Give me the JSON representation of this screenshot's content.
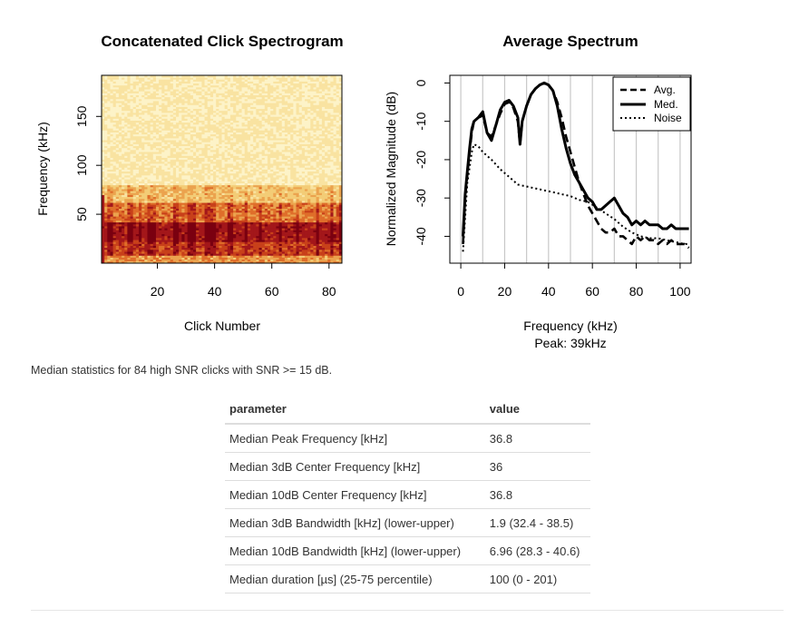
{
  "summary": "Median statistics for 84 high SNR clicks with SNR >= 15 dB.",
  "colors": {
    "heat": [
      "#7a0010",
      "#a3171a",
      "#c8401a",
      "#df6e2a",
      "#eba34e",
      "#f3cc76",
      "#f9e3a1",
      "#fdf3c8"
    ],
    "line": "#000000",
    "grid": "#c8c8c8"
  },
  "chart_data": [
    {
      "type": "heatmap",
      "title": "Concatenated Click Spectrogram",
      "xlabel": "Click Number",
      "ylabel": "Frequency (kHz)",
      "x_ticks": [
        20,
        40,
        60,
        80
      ],
      "y_ticks": [
        50,
        100,
        150
      ],
      "xlim": [
        0.5,
        84.5
      ],
      "ylim": [
        0,
        192
      ],
      "n_clicks": 84,
      "freq_bins": 96,
      "description_of_values": "normalized magnitude per click and frequency; strongest energy 10-60 kHz"
    },
    {
      "type": "line",
      "title": "Average Spectrum",
      "xlabel": "Frequency (kHz)",
      "subtitle": "Peak: 39kHz",
      "ylabel": "Normalized Magnitude (dB)",
      "x_ticks": [
        0,
        20,
        40,
        60,
        80,
        100
      ],
      "y_ticks": [
        0,
        -10,
        -20,
        -30,
        -40
      ],
      "xlim": [
        -5,
        105
      ],
      "ylim": [
        -47,
        2
      ],
      "vertical_grid": [
        0,
        10,
        20,
        30,
        40,
        50,
        60,
        70,
        80,
        90,
        100
      ],
      "legend": [
        "Avg.",
        "Med.",
        "Noise"
      ],
      "legend_position": "top-right",
      "series": [
        {
          "name": "Avg.",
          "style": "dashed",
          "x": [
            1,
            2,
            3,
            4,
            5,
            6,
            8,
            10,
            12,
            14,
            16,
            18,
            20,
            22,
            24,
            26,
            27,
            28,
            30,
            32,
            34,
            36,
            38,
            40,
            42,
            44,
            46,
            48,
            50,
            52,
            54,
            56,
            58,
            60,
            62,
            64,
            66,
            68,
            70,
            72,
            74,
            76,
            78,
            80,
            82,
            84,
            86,
            88,
            90,
            92,
            94,
            96,
            98,
            100,
            102,
            104
          ],
          "y": [
            -42,
            -30,
            -24,
            -18,
            -13,
            -10,
            -9,
            -8.5,
            -13,
            -14,
            -11,
            -8,
            -5.5,
            -5,
            -6.5,
            -10,
            -16,
            -10,
            -6,
            -3,
            -1.5,
            -0.5,
            0,
            -0.5,
            -2,
            -5,
            -9,
            -14,
            -18,
            -22,
            -26,
            -29,
            -32,
            -34,
            -36,
            -38,
            -39,
            -39,
            -38,
            -40,
            -40,
            -41,
            -42,
            -40,
            -41,
            -40,
            -41,
            -41,
            -42,
            -41,
            -42,
            -41,
            -42,
            -42,
            -42,
            -43
          ]
        },
        {
          "name": "Med.",
          "style": "solid",
          "x": [
            1,
            2,
            3,
            4,
            5,
            6,
            8,
            10,
            12,
            14,
            16,
            18,
            20,
            22,
            24,
            26,
            27,
            28,
            30,
            32,
            34,
            36,
            38,
            40,
            42,
            44,
            46,
            48,
            50,
            52,
            54,
            56,
            58,
            60,
            62,
            64,
            66,
            68,
            70,
            72,
            74,
            76,
            78,
            80,
            82,
            84,
            86,
            88,
            90,
            92,
            94,
            96,
            98,
            100,
            102,
            104
          ],
          "y": [
            -40,
            -29,
            -23,
            -17,
            -12,
            -10,
            -9,
            -7.5,
            -13,
            -15,
            -11,
            -7,
            -5,
            -4.5,
            -6,
            -9,
            -16,
            -10,
            -6,
            -3,
            -1.5,
            -0.5,
            0,
            -0.5,
            -2,
            -6,
            -12,
            -17,
            -21,
            -24,
            -26,
            -28,
            -30,
            -31,
            -33,
            -33,
            -32,
            -31,
            -30,
            -32,
            -34,
            -35,
            -37,
            -36,
            -37,
            -36,
            -37,
            -37,
            -37,
            -38,
            -38,
            -37,
            -38,
            -38,
            -38,
            -38
          ]
        },
        {
          "name": "Noise",
          "style": "dotted",
          "x": [
            1,
            2,
            3,
            4,
            5,
            6,
            8,
            10,
            14,
            18,
            22,
            26,
            30,
            34,
            38,
            42,
            46,
            50,
            54,
            58,
            62,
            66,
            70,
            74,
            78,
            82,
            86,
            90,
            94,
            98,
            102,
            104
          ],
          "y": [
            -44,
            -35,
            -26,
            -22,
            -18,
            -16,
            -16.5,
            -18,
            -20,
            -22.5,
            -24.5,
            -26.5,
            -27,
            -27.5,
            -28,
            -28.5,
            -29,
            -29.5,
            -30.5,
            -31,
            -32.5,
            -34,
            -35.5,
            -37.5,
            -39,
            -40,
            -40.5,
            -40.5,
            -41,
            -41.5,
            -42,
            -42
          ]
        }
      ]
    }
  ],
  "table": {
    "headers": [
      "parameter",
      "value"
    ],
    "rows": [
      [
        "Median Peak Frequency [kHz]",
        "36.8"
      ],
      [
        "Median 3dB Center Frequency [kHz]",
        "36"
      ],
      [
        "Median 10dB Center Frequency [kHz]",
        "36.8"
      ],
      [
        "Median 3dB Bandwidth [kHz] (lower-upper)",
        "1.9 (32.4 - 38.5)"
      ],
      [
        "Median 10dB Bandwidth [kHz] (lower-upper)",
        "6.96 (28.3 - 40.6)"
      ],
      [
        "Median duration [µs] (25-75 percentile)",
        "100 (0 - 201)"
      ]
    ]
  }
}
